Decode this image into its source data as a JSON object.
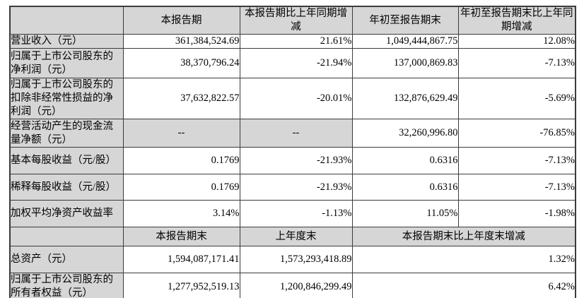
{
  "colors": {
    "cell_shaded": "#d6d6d6",
    "border": "#3b3b3b",
    "text": "#000000",
    "background": "#ffffff"
  },
  "main_table": {
    "header": {
      "corner": "",
      "current_period": "本报告期",
      "current_period_yoy": "本报告期比上年同期增减",
      "ytd": "年初至报告期末",
      "ytd_yoy": "年初至报告期末比上年同期增减"
    },
    "rows": [
      {
        "label": "营业收入（元）",
        "values": [
          "361,384,524.69",
          "21.61%",
          "1,049,444,867.75",
          "12.08%"
        ]
      },
      {
        "label": "归属于上市公司股东的净利润（元）",
        "values": [
          "38,370,796.24",
          "-21.94%",
          "137,000,869.83",
          "-7.13%"
        ]
      },
      {
        "label": "归属于上市公司股东的扣除非经常性损益的净利润（元）",
        "values": [
          "37,632,822.57",
          "-20.01%",
          "132,876,629.49",
          "-5.69%"
        ]
      },
      {
        "label": "经营活动产生的现金流量净额（元）",
        "values": [
          "--",
          "--",
          "32,260,996.80",
          "-76.85%"
        ]
      },
      {
        "label": "基本每股收益（元/股）",
        "values": [
          "0.1769",
          "-21.93%",
          "0.6316",
          "-7.13%"
        ]
      },
      {
        "label": "稀释每股收益（元/股）",
        "values": [
          "0.1769",
          "-21.93%",
          "0.6316",
          "-7.13%"
        ]
      },
      {
        "label": "加权平均净资产收益率",
        "values": [
          "3.14%",
          "-1.13%",
          "11.05%",
          "-1.98%"
        ]
      }
    ]
  },
  "secondary_table": {
    "header": {
      "corner": "",
      "period_end": "本报告期末",
      "prior_year_end": "上年度末",
      "change_vs_prior_year_end": "本报告期末比上年度末增减"
    },
    "rows": [
      {
        "label": "总资产（元）",
        "values": [
          "1,594,087,171.41",
          "1,573,293,418.89",
          "1.32%"
        ]
      },
      {
        "label": "归属于上市公司股东的所有者权益（元）",
        "values": [
          "1,277,952,519.13",
          "1,200,846,299.49",
          "6.42%"
        ]
      }
    ]
  }
}
